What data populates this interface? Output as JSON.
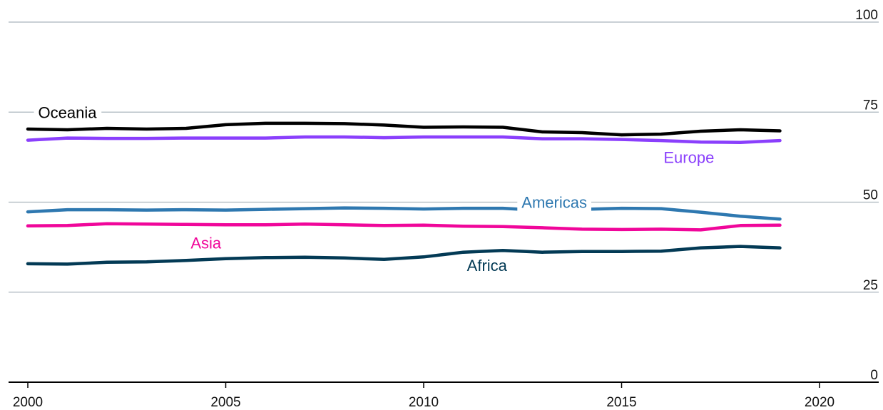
{
  "chart_data": {
    "type": "line",
    "title": "",
    "xlabel": "",
    "ylabel": "",
    "xlim": [
      2000,
      2021.5
    ],
    "ylim": [
      0,
      100
    ],
    "grid": true,
    "legend": "inline labels",
    "x_ticks": [
      "2000",
      "2005",
      "2010",
      "2015",
      "2020"
    ],
    "y_ticks": [
      "0",
      "25",
      "50",
      "75",
      "100"
    ],
    "x": [
      2000,
      2001,
      2002,
      2003,
      2004,
      2005,
      2006,
      2007,
      2008,
      2009,
      2010,
      2011,
      2012,
      2013,
      2014,
      2015,
      2016,
      2017,
      2018,
      2019
    ],
    "series": [
      {
        "name": "Oceania",
        "color": "#000000",
        "values": [
          70.3,
          70.1,
          70.5,
          70.3,
          70.5,
          71.5,
          71.9,
          71.9,
          71.8,
          71.4,
          70.8,
          70.9,
          70.8,
          69.5,
          69.3,
          68.7,
          68.9,
          69.7,
          70.1,
          69.8
        ]
      },
      {
        "name": "Europe",
        "color": "#8a3ffc",
        "values": [
          67.2,
          67.8,
          67.7,
          67.7,
          67.8,
          67.8,
          67.8,
          68.1,
          68.1,
          67.9,
          68.1,
          68.1,
          68.1,
          67.6,
          67.6,
          67.4,
          67.1,
          66.7,
          66.6,
          67.1
        ]
      },
      {
        "name": "Americas",
        "color": "#2e78b0",
        "values": [
          47.3,
          47.9,
          47.9,
          47.8,
          47.9,
          47.8,
          48.0,
          48.2,
          48.4,
          48.3,
          48.1,
          48.3,
          48.3,
          47.7,
          48.0,
          48.3,
          48.2,
          47.2,
          46.1,
          45.3
        ]
      },
      {
        "name": "Asia",
        "color": "#f0069a",
        "values": [
          43.4,
          43.5,
          44.0,
          43.9,
          43.8,
          43.7,
          43.7,
          43.9,
          43.7,
          43.5,
          43.6,
          43.3,
          43.2,
          42.9,
          42.5,
          42.4,
          42.5,
          42.3,
          43.5,
          43.6
        ]
      },
      {
        "name": "Africa",
        "color": "#033a55",
        "values": [
          32.9,
          32.8,
          33.3,
          33.4,
          33.8,
          34.3,
          34.6,
          34.7,
          34.5,
          34.1,
          34.8,
          36.1,
          36.6,
          36.1,
          36.3,
          36.3,
          36.4,
          37.3,
          37.7,
          37.3
        ]
      }
    ],
    "labels": [
      {
        "text": "Oceania",
        "x": 2001,
        "y": 75,
        "color": "#000000",
        "knockout": true
      },
      {
        "text": "Europe",
        "x": 2016.7,
        "y": 62.5,
        "color": "#8a3ffc",
        "knockout": false
      },
      {
        "text": "Americas",
        "x": 2013.3,
        "y": 50,
        "color": "#2e78b0",
        "knockout": true
      },
      {
        "text": "Asia",
        "x": 2004.5,
        "y": 38.7,
        "color": "#f0069a",
        "knockout": false
      },
      {
        "text": "Africa",
        "x": 2011.6,
        "y": 32.5,
        "color": "#033a55",
        "knockout": false
      }
    ]
  },
  "colors": {
    "grid": "#aab5bd",
    "axis": "#000000",
    "tick_text": "#111111",
    "background": "#ffffff"
  }
}
